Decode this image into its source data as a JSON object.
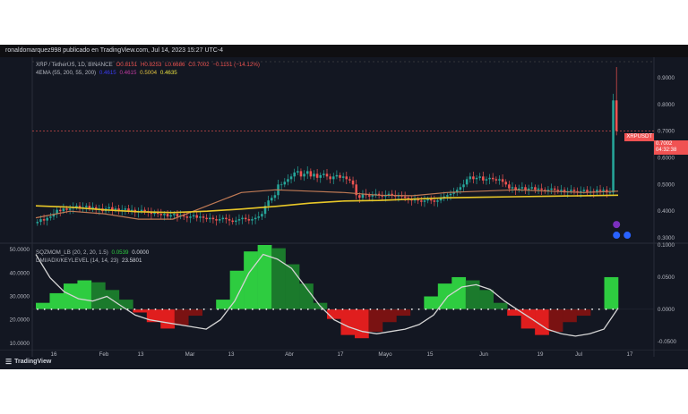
{
  "header": {
    "publish_line": "ronaldomarquez998 publicado en TradingView.com, Jul 14, 2023 15:27 UTC-4"
  },
  "legend": {
    "symbol": "XRP / TetherUS, 1D, BINANCE",
    "o": "O0.8151",
    "h": "H0.8253",
    "l": "L0.6686",
    "c": "C0.7002",
    "chg": "−0.1151 (−14.12%)",
    "ema_label": "4EMA (55, 200, 55, 200)",
    "ema_v1": "0.4615",
    "ema_v2": "0.4615",
    "ema_v3": "0.5004",
    "ema_v4": "0.4635",
    "sqz_label": "SQZMOM_LB (20, 2, 20, 1.5)",
    "sqz_v1": "0.0539",
    "sqz_v2": "0.0000",
    "dmi_label": "DMI/ADX/KEYLEVEL (14, 14, 23)",
    "dmi_v1": "23.5801"
  },
  "price_tag": {
    "symbol": "XRPUSDT",
    "price": "0.7002",
    "countdown": "04:32:38"
  },
  "branding": {
    "logo": "TradingView",
    "logo_icon": "tradingview-logo-icon"
  },
  "colors": {
    "background": "#131722",
    "up": "#26a69a",
    "down": "#ef5350",
    "ema_fast": "#c07a55",
    "ema_slow": "#e8c728",
    "sqz_pos_strong": "#2ecc40",
    "sqz_pos_weak": "#1b7a2c",
    "sqz_neg_strong": "#e01e1e",
    "sqz_neg_weak": "#7a1212",
    "adx": "#d5d5d5"
  },
  "chart_data": [
    {
      "type": "candlestick",
      "title": "XRP / TetherUS, 1D, BINANCE",
      "x_ticks": [
        "16",
        "Feb",
        "13",
        "Mar",
        "13",
        "Abr",
        "17",
        "Mayo",
        "15",
        "Jun",
        "19",
        "Jul",
        "17"
      ],
      "y_ticks": [
        "0.3000",
        "0.4000",
        "0.5000",
        "0.6000",
        "0.7000",
        "0.8000",
        "0.9000"
      ],
      "ylim": [
        0.29,
        0.96
      ],
      "days": 188,
      "close": [
        0.36,
        0.37,
        0.365,
        0.375,
        0.38,
        0.39,
        0.405,
        0.4,
        0.41,
        0.405,
        0.41,
        0.415,
        0.42,
        0.41,
        0.415,
        0.42,
        0.41,
        0.415,
        0.405,
        0.41,
        0.4,
        0.41,
        0.415,
        0.405,
        0.41,
        0.4,
        0.405,
        0.41,
        0.4,
        0.405,
        0.395,
        0.4,
        0.405,
        0.4,
        0.395,
        0.39,
        0.395,
        0.39,
        0.385,
        0.39,
        0.38,
        0.385,
        0.39,
        0.38,
        0.385,
        0.38,
        0.375,
        0.38,
        0.385,
        0.375,
        0.38,
        0.375,
        0.37,
        0.375,
        0.37,
        0.365,
        0.37,
        0.375,
        0.37,
        0.365,
        0.36,
        0.365,
        0.37,
        0.375,
        0.37,
        0.365,
        0.37,
        0.375,
        0.38,
        0.39,
        0.42,
        0.44,
        0.45,
        0.46,
        0.5,
        0.5,
        0.51,
        0.52,
        0.53,
        0.545,
        0.55,
        0.53,
        0.54,
        0.55,
        0.53,
        0.54,
        0.525,
        0.535,
        0.54,
        0.53,
        0.52,
        0.53,
        0.535,
        0.525,
        0.53,
        0.52,
        0.515,
        0.5,
        0.46,
        0.45,
        0.465,
        0.46,
        0.455,
        0.46,
        0.465,
        0.46,
        0.455,
        0.46,
        0.465,
        0.46,
        0.455,
        0.46,
        0.455,
        0.45,
        0.445,
        0.44,
        0.445,
        0.44,
        0.435,
        0.44,
        0.445,
        0.44,
        0.435,
        0.44,
        0.45,
        0.455,
        0.46,
        0.465,
        0.47,
        0.48,
        0.49,
        0.5,
        0.52,
        0.53,
        0.52,
        0.525,
        0.53,
        0.515,
        0.52,
        0.525,
        0.52,
        0.515,
        0.52,
        0.51,
        0.5,
        0.485,
        0.49,
        0.48,
        0.485,
        0.49,
        0.48,
        0.485,
        0.49,
        0.48,
        0.485,
        0.48,
        0.475,
        0.48,
        0.485,
        0.48,
        0.475,
        0.48,
        0.47,
        0.475,
        0.48,
        0.475,
        0.47,
        0.475,
        0.48,
        0.47,
        0.475,
        0.47,
        0.48,
        0.475,
        0.48,
        0.47,
        0.47,
        0.815,
        0.7002
      ],
      "high_last": 0.94,
      "ema_fast": [
        0.375,
        0.4,
        0.39,
        0.37,
        0.37,
        0.42,
        0.47,
        0.48,
        0.475,
        0.47,
        0.46,
        0.458,
        0.47,
        0.475,
        0.48,
        0.475,
        0.47,
        0.475
      ],
      "ema_slow": [
        0.42,
        0.415,
        0.405,
        0.398,
        0.395,
        0.4,
        0.408,
        0.418,
        0.43,
        0.438,
        0.44,
        0.445,
        0.45,
        0.452,
        0.454,
        0.456,
        0.458,
        0.46
      ]
    },
    {
      "type": "area",
      "title": "SQZMOM_LB (20, 2, 20, 1.5) / DMI/ADX/KEYLEVEL (14, 14, 23)",
      "left_ticks": [
        "10.0000",
        "20.0000",
        "30.0000",
        "40.0000",
        "50.0000"
      ],
      "right_ticks": [
        "-0.0500",
        "0.0000",
        "0.0500",
        "0.1000"
      ],
      "sqz_range": [
        -0.06,
        0.1
      ],
      "adx_range": [
        8,
        52
      ],
      "squeeze_momentum": [
        0.01,
        0.025,
        0.04,
        0.045,
        0.042,
        0.03,
        0.015,
        -0.005,
        -0.02,
        -0.03,
        -0.025,
        -0.01,
        0.0,
        0.015,
        0.06,
        0.09,
        0.1,
        0.095,
        0.07,
        0.04,
        0.01,
        -0.015,
        -0.04,
        -0.045,
        -0.035,
        -0.02,
        -0.01,
        0.0,
        0.02,
        0.04,
        0.05,
        0.045,
        0.03,
        0.01,
        -0.01,
        -0.03,
        -0.04,
        -0.035,
        -0.02,
        -0.01,
        0.0,
        0.05
      ],
      "adx": [
        48,
        38,
        32,
        29,
        28,
        30,
        26,
        22,
        20,
        19,
        18,
        17,
        16,
        20,
        28,
        40,
        48,
        46,
        42,
        34,
        26,
        20,
        17,
        15,
        14,
        15,
        16,
        18,
        22,
        30,
        34,
        35,
        33,
        28,
        24,
        20,
        16,
        14,
        13,
        14,
        16,
        25
      ]
    }
  ]
}
